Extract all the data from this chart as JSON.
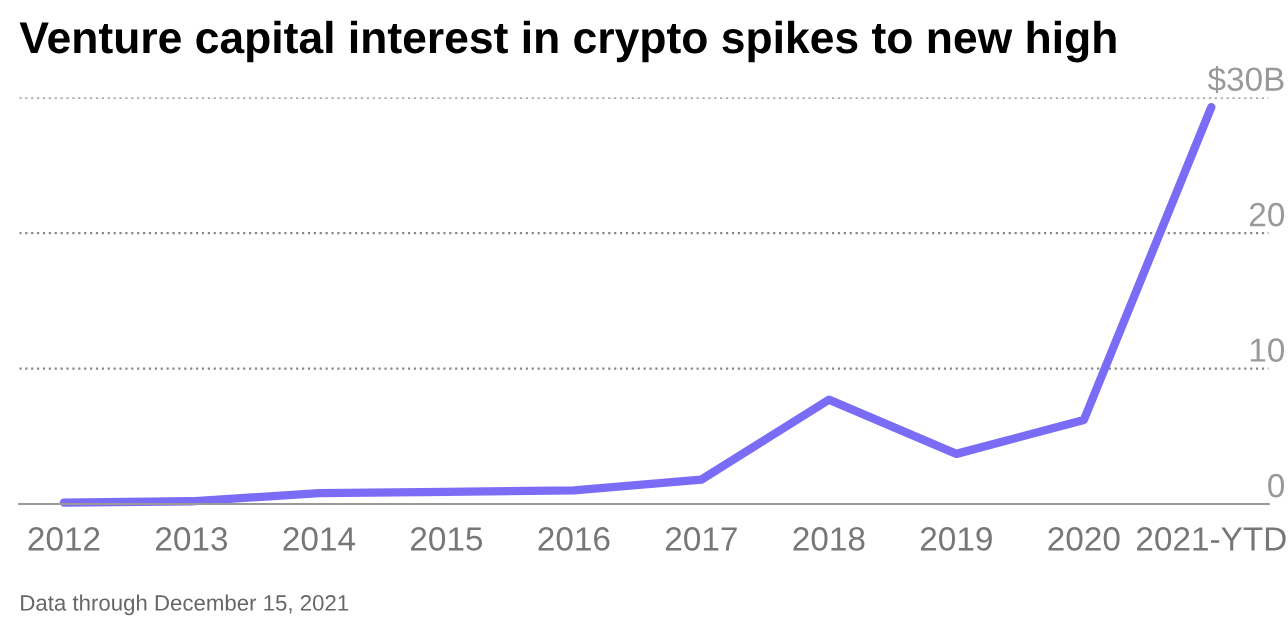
{
  "chart_data": {
    "type": "line",
    "title": "Venture capital interest in crypto spikes to new high",
    "categories": [
      "2012",
      "2013",
      "2014",
      "2015",
      "2016",
      "2017",
      "2018",
      "2019",
      "2020",
      "2021-YTD"
    ],
    "series": [
      {
        "color": "#7b6cf6",
        "values": [
          0.1,
          0.2,
          0.8,
          0.9,
          1.0,
          1.8,
          7.7,
          3.7,
          6.2,
          29.3
        ]
      }
    ],
    "ylim": [
      0,
      30
    ],
    "yticks": [
      0,
      10,
      20,
      {
        "value": 30,
        "label": "$30B"
      }
    ],
    "grid": "y",
    "legend": false,
    "marker": "none",
    "line_style": "solid",
    "annotations": [
      "Data through December 15, 2021"
    ]
  }
}
